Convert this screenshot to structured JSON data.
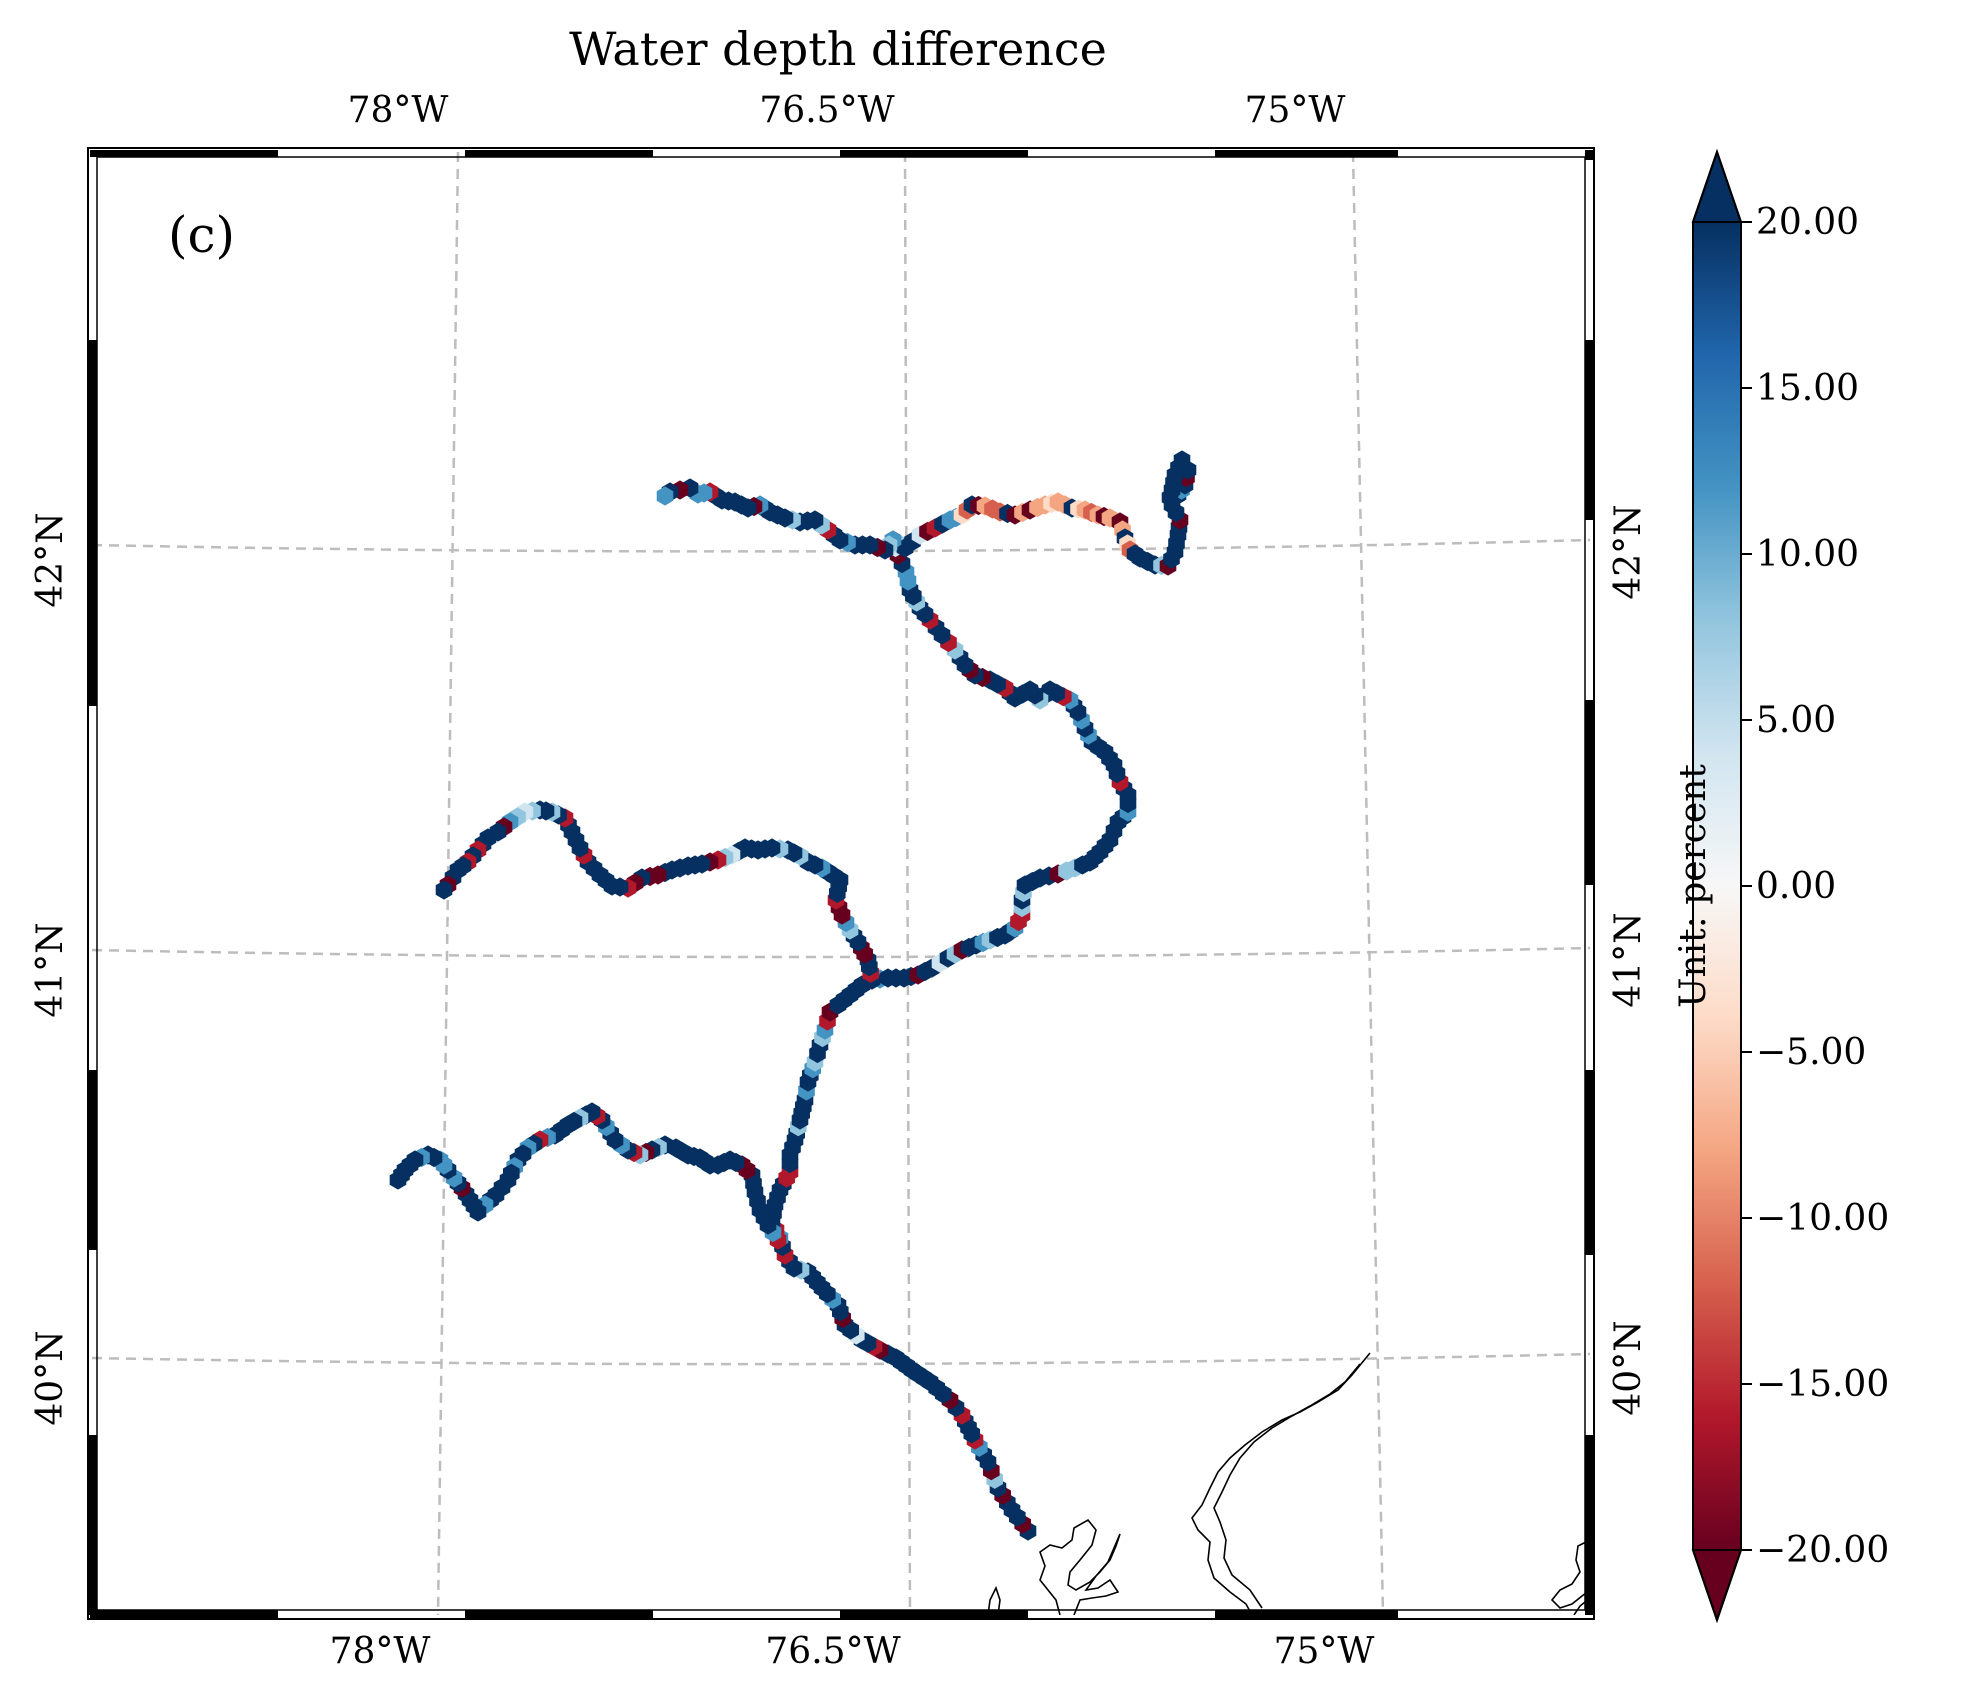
{
  "title": "Water depth difference",
  "panel_label": "(c)",
  "lon_ticks": [
    "78°W",
    "76.5°W",
    "75°W"
  ],
  "lat_ticks": [
    "42°N",
    "41°N",
    "40°N"
  ],
  "colorbar": {
    "label": "Unit: percent",
    "tick_labels": [
      "20.00",
      "15.00",
      "10.00",
      "5.00",
      "0.00",
      "−5.00",
      "−10.00",
      "−15.00",
      "−20.00"
    ],
    "min": -20,
    "max": 20,
    "extend": "both",
    "colormap": "RdBu",
    "stops": [
      "#67001f",
      "#b2182b",
      "#d6604d",
      "#f4a582",
      "#fddbc7",
      "#f7f7f7",
      "#d1e5f0",
      "#92c5de",
      "#4393c3",
      "#2166ac",
      "#053061"
    ]
  },
  "colors": {
    "gridline": "#bdbdbd",
    "coastline": "#000000",
    "frame": "#000000"
  }
}
